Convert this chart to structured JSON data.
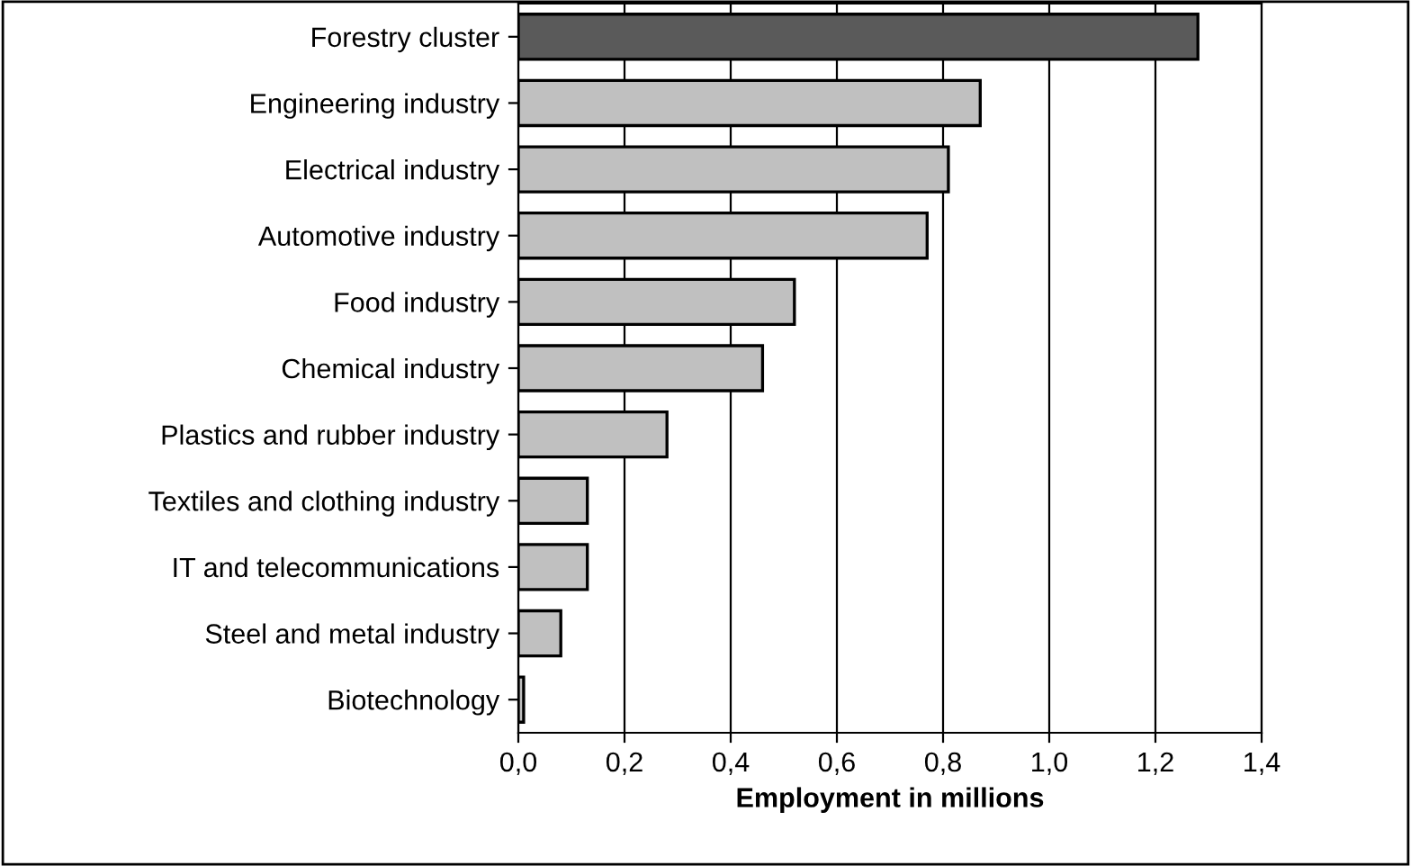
{
  "chart_data": {
    "type": "bar",
    "orientation": "horizontal",
    "xlabel": "Employment in millions",
    "categories": [
      "Forestry cluster",
      "Engineering industry",
      "Electrical industry",
      "Automotive industry",
      "Food industry",
      "Chemical industry",
      "Plastics and rubber industry",
      "Textiles and clothing industry",
      "IT and telecommunications",
      "Steel and metal industry",
      "Biotechnology"
    ],
    "values": [
      1.28,
      0.87,
      0.81,
      0.77,
      0.52,
      0.46,
      0.28,
      0.13,
      0.13,
      0.08,
      0.01
    ],
    "colors": [
      "#5a5a5a",
      "#c0c0c0",
      "#c0c0c0",
      "#c0c0c0",
      "#c0c0c0",
      "#c0c0c0",
      "#c0c0c0",
      "#c0c0c0",
      "#c0c0c0",
      "#c0c0c0",
      "#c0c0c0"
    ],
    "xlim": [
      0,
      1.4
    ],
    "xticks": [
      {
        "value": 0,
        "label": "0,0"
      },
      {
        "value": 0.2,
        "label": "0,2"
      },
      {
        "value": 0.4,
        "label": "0,4"
      },
      {
        "value": 0.6,
        "label": "0,6"
      },
      {
        "value": 0.8,
        "label": "0,8"
      },
      {
        "value": 1.0,
        "label": "1,0"
      },
      {
        "value": 1.2,
        "label": "1,2"
      },
      {
        "value": 1.4,
        "label": "1,4"
      }
    ],
    "grid": "x",
    "legend": false
  }
}
